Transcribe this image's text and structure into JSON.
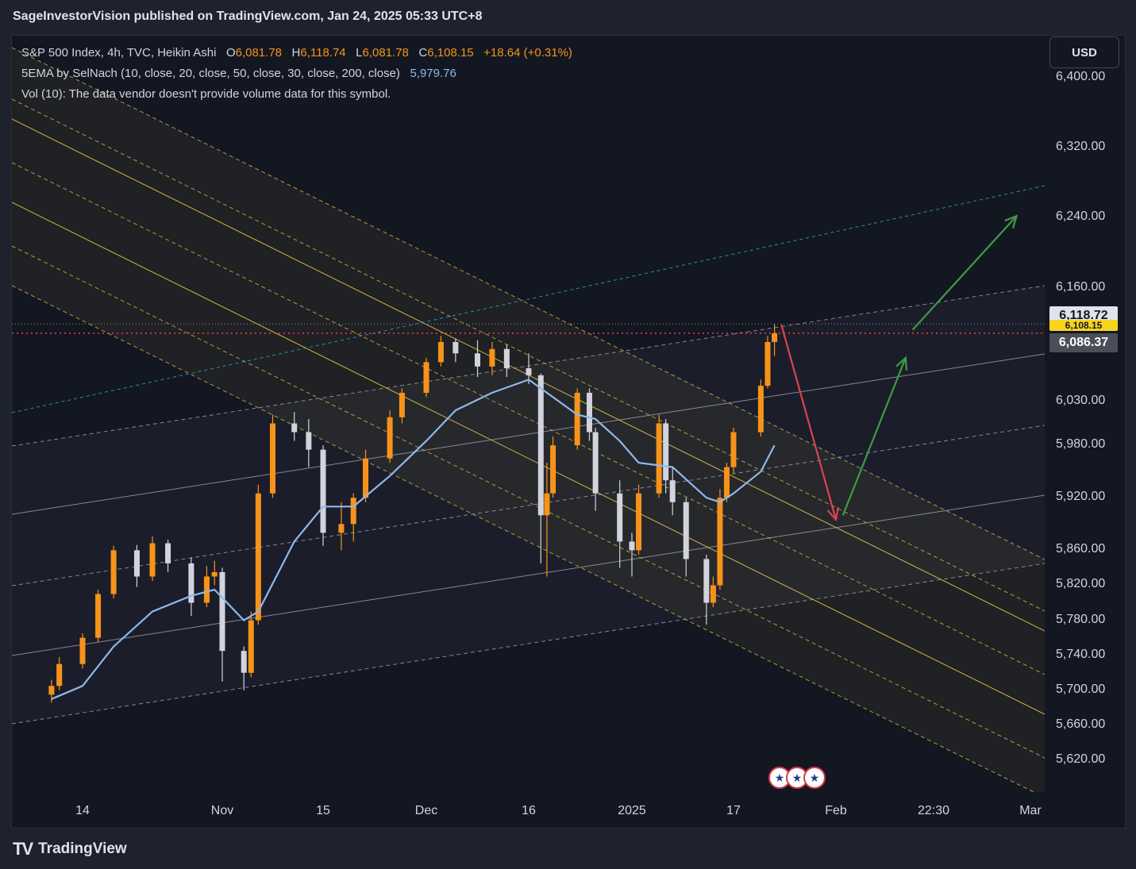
{
  "header": {
    "title": "SageInvestorVision published on TradingView.com, Jan 24, 2025 05:33 UTC+8"
  },
  "legend": {
    "symbol": "S&P 500 Index, 4h, TVC, Heikin Ashi",
    "o_label": "O",
    "o_value": "6,081.78",
    "h_label": "H",
    "h_value": "6,118.74",
    "l_label": "L",
    "l_value": "6,081.78",
    "c_label": "C",
    "c_value": "6,108.15",
    "change": "+18.64 (+0.31%)",
    "ema_label": "5EMA by SelNach (10, close, 20, close, 50, close, 30, close, 200, close)",
    "ema_value": "5,979.76",
    "vol_text": "Vol (10): The data vendor doesn't provide volume data for this symbol."
  },
  "currency_button": "USD",
  "price_labels": {
    "high": "6,118.72",
    "current": "6,108.15",
    "lower": "6,086.37"
  },
  "footer": {
    "logo_icon": "tradingview-logo-icon",
    "brand": "TradingView"
  },
  "event_icons": [
    "us-flag-icon",
    "us-flag-icon",
    "us-flag-icon"
  ],
  "colors": {
    "up": "#f7931a",
    "down": "#d1d4dc",
    "ema": "#8fb8ec",
    "channel_yellow": "#f5d142",
    "channel_white": "#b2b5be",
    "channel_teal": "#26a6c9",
    "arrow_red": "#d9434f",
    "arrow_green": "#3e9b47",
    "dotted_red": "#f23645"
  },
  "chart_data": {
    "type": "candlestick",
    "style": "Heikin Ashi",
    "symbol": "S&P 500 Index",
    "interval": "4h",
    "y_ticks": [
      6400,
      6320,
      6240,
      6160,
      6030,
      5980,
      5920,
      5860,
      5820,
      5780,
      5740,
      5700,
      5660,
      5620
    ],
    "y_tick_labels": [
      "6,400.00",
      "6,320.00",
      "6,240.00",
      "6,160.00",
      "6,030.00",
      "5,980.00",
      "5,920.00",
      "5,860.00",
      "5,820.00",
      "5,780.00",
      "5,740.00",
      "5,700.00",
      "5,660.00",
      "5,620.00"
    ],
    "x_tick_labels": [
      "14",
      "Nov",
      "15",
      "Dec",
      "16",
      "2025",
      "17",
      "Feb",
      "22:30",
      "Mar"
    ],
    "x_tick_dates": [
      "2024-10-14",
      "2024-11-01",
      "2024-11-15",
      "2024-12-02",
      "2024-12-16",
      "2025-01-02",
      "2025-01-17",
      "2025-02-01",
      "2025-02-15",
      "2025-03-01"
    ],
    "ylim": [
      5585,
      6440
    ],
    "grid": false,
    "candles": [
      {
        "date": "2024-10-10",
        "o": 5695,
        "h": 5712,
        "l": 5686,
        "c": 5705
      },
      {
        "date": "2024-10-11",
        "o": 5705,
        "h": 5738,
        "l": 5700,
        "c": 5730
      },
      {
        "date": "2024-10-14",
        "o": 5730,
        "h": 5765,
        "l": 5725,
        "c": 5760
      },
      {
        "date": "2024-10-16",
        "o": 5760,
        "h": 5815,
        "l": 5755,
        "c": 5810
      },
      {
        "date": "2024-10-18",
        "o": 5810,
        "h": 5865,
        "l": 5805,
        "c": 5860
      },
      {
        "date": "2024-10-21",
        "o": 5860,
        "h": 5866,
        "l": 5818,
        "c": 5830
      },
      {
        "date": "2024-10-23",
        "o": 5830,
        "h": 5876,
        "l": 5825,
        "c": 5868
      },
      {
        "date": "2024-10-25",
        "o": 5868,
        "h": 5872,
        "l": 5835,
        "c": 5845
      },
      {
        "date": "2024-10-28",
        "o": 5845,
        "h": 5852,
        "l": 5785,
        "c": 5800
      },
      {
        "date": "2024-10-30",
        "o": 5800,
        "h": 5842,
        "l": 5795,
        "c": 5830
      },
      {
        "date": "2024-10-31",
        "o": 5830,
        "h": 5848,
        "l": 5820,
        "c": 5835
      },
      {
        "date": "2024-11-01",
        "o": 5835,
        "h": 5840,
        "l": 5710,
        "c": 5745
      },
      {
        "date": "2024-11-04",
        "o": 5745,
        "h": 5750,
        "l": 5700,
        "c": 5720
      },
      {
        "date": "2024-11-05",
        "o": 5720,
        "h": 5790,
        "l": 5715,
        "c": 5780
      },
      {
        "date": "2024-11-06",
        "o": 5780,
        "h": 5935,
        "l": 5775,
        "c": 5925
      },
      {
        "date": "2024-11-08",
        "o": 5925,
        "h": 6015,
        "l": 5920,
        "c": 6005
      },
      {
        "date": "2024-11-11",
        "o": 6005,
        "h": 6018,
        "l": 5985,
        "c": 5995
      },
      {
        "date": "2024-11-13",
        "o": 5995,
        "h": 6010,
        "l": 5955,
        "c": 5975
      },
      {
        "date": "2024-11-15",
        "o": 5975,
        "h": 5980,
        "l": 5865,
        "c": 5880
      },
      {
        "date": "2024-11-18",
        "o": 5880,
        "h": 5915,
        "l": 5860,
        "c": 5890
      },
      {
        "date": "2024-11-20",
        "o": 5890,
        "h": 5925,
        "l": 5870,
        "c": 5920
      },
      {
        "date": "2024-11-22",
        "o": 5920,
        "h": 5975,
        "l": 5915,
        "c": 5965
      },
      {
        "date": "2024-11-26",
        "o": 5965,
        "h": 6020,
        "l": 5960,
        "c": 6012
      },
      {
        "date": "2024-11-28",
        "o": 6012,
        "h": 6045,
        "l": 6005,
        "c": 6040
      },
      {
        "date": "2024-12-02",
        "o": 6040,
        "h": 6080,
        "l": 6035,
        "c": 6075
      },
      {
        "date": "2024-12-04",
        "o": 6075,
        "h": 6105,
        "l": 6070,
        "c": 6098
      },
      {
        "date": "2024-12-06",
        "o": 6098,
        "h": 6102,
        "l": 6075,
        "c": 6085
      },
      {
        "date": "2024-12-09",
        "o": 6085,
        "h": 6100,
        "l": 6058,
        "c": 6070
      },
      {
        "date": "2024-12-11",
        "o": 6070,
        "h": 6098,
        "l": 6060,
        "c": 6090
      },
      {
        "date": "2024-12-13",
        "o": 6090,
        "h": 6095,
        "l": 6058,
        "c": 6068
      },
      {
        "date": "2024-12-16",
        "o": 6068,
        "h": 6085,
        "l": 6050,
        "c": 6060
      },
      {
        "date": "2024-12-18",
        "o": 6060,
        "h": 6062,
        "l": 5845,
        "c": 5900
      },
      {
        "date": "2024-12-19",
        "o": 5900,
        "h": 5960,
        "l": 5830,
        "c": 5925
      },
      {
        "date": "2024-12-20",
        "o": 5925,
        "h": 5990,
        "l": 5920,
        "c": 5980
      },
      {
        "date": "2024-12-24",
        "o": 5980,
        "h": 6045,
        "l": 5975,
        "c": 6040
      },
      {
        "date": "2024-12-26",
        "o": 6040,
        "h": 6045,
        "l": 5985,
        "c": 5995
      },
      {
        "date": "2024-12-27",
        "o": 5995,
        "h": 6000,
        "l": 5905,
        "c": 5925
      },
      {
        "date": "2024-12-31",
        "o": 5925,
        "h": 5940,
        "l": 5840,
        "c": 5870
      },
      {
        "date": "2025-01-02",
        "o": 5870,
        "h": 5880,
        "l": 5830,
        "c": 5860
      },
      {
        "date": "2025-01-03",
        "o": 5860,
        "h": 5935,
        "l": 5855,
        "c": 5925
      },
      {
        "date": "2025-01-06",
        "o": 5925,
        "h": 6015,
        "l": 5920,
        "c": 6005
      },
      {
        "date": "2025-01-07",
        "o": 6005,
        "h": 6010,
        "l": 5925,
        "c": 5940
      },
      {
        "date": "2025-01-08",
        "o": 5940,
        "h": 5955,
        "l": 5900,
        "c": 5915
      },
      {
        "date": "2025-01-10",
        "o": 5915,
        "h": 5920,
        "l": 5830,
        "c": 5850
      },
      {
        "date": "2025-01-13",
        "o": 5850,
        "h": 5855,
        "l": 5775,
        "c": 5800
      },
      {
        "date": "2025-01-14",
        "o": 5800,
        "h": 5830,
        "l": 5795,
        "c": 5820
      },
      {
        "date": "2025-01-15",
        "o": 5820,
        "h": 5930,
        "l": 5815,
        "c": 5920
      },
      {
        "date": "2025-01-16",
        "o": 5920,
        "h": 5960,
        "l": 5915,
        "c": 5955
      },
      {
        "date": "2025-01-17",
        "o": 5955,
        "h": 6000,
        "l": 5948,
        "c": 5995
      },
      {
        "date": "2025-01-21",
        "o": 5995,
        "h": 6055,
        "l": 5990,
        "c": 6048
      },
      {
        "date": "2025-01-22",
        "o": 6048,
        "h": 6105,
        "l": 6045,
        "c": 6098
      },
      {
        "date": "2025-01-23",
        "o": 6098,
        "h": 6119,
        "l": 6082,
        "c": 6108
      }
    ],
    "ema_series": {
      "name": "5EMA by SelNach",
      "last_value": 5979.76,
      "points": [
        {
          "date": "2024-10-10",
          "y": 5690
        },
        {
          "date": "2024-10-14",
          "y": 5705
        },
        {
          "date": "2024-10-18",
          "y": 5750
        },
        {
          "date": "2024-10-23",
          "y": 5790
        },
        {
          "date": "2024-10-28",
          "y": 5808
        },
        {
          "date": "2024-10-31",
          "y": 5815
        },
        {
          "date": "2024-11-04",
          "y": 5780
        },
        {
          "date": "2024-11-06",
          "y": 5790
        },
        {
          "date": "2024-11-11",
          "y": 5870
        },
        {
          "date": "2024-11-15",
          "y": 5910
        },
        {
          "date": "2024-11-20",
          "y": 5910
        },
        {
          "date": "2024-11-26",
          "y": 5945
        },
        {
          "date": "2024-12-02",
          "y": 5985
        },
        {
          "date": "2024-12-06",
          "y": 6020
        },
        {
          "date": "2024-12-11",
          "y": 6040
        },
        {
          "date": "2024-12-16",
          "y": 6055
        },
        {
          "date": "2024-12-19",
          "y": 6040
        },
        {
          "date": "2024-12-24",
          "y": 6015
        },
        {
          "date": "2024-12-27",
          "y": 6010
        },
        {
          "date": "2024-12-31",
          "y": 5985
        },
        {
          "date": "2025-01-03",
          "y": 5960
        },
        {
          "date": "2025-01-08",
          "y": 5955
        },
        {
          "date": "2025-01-13",
          "y": 5920
        },
        {
          "date": "2025-01-15",
          "y": 5915
        },
        {
          "date": "2025-01-17",
          "y": 5925
        },
        {
          "date": "2025-01-21",
          "y": 5950
        },
        {
          "date": "2025-01-23",
          "y": 5980
        }
      ]
    },
    "horizontal_levels": [
      6108.15,
      6118.72
    ],
    "projection_arrows": [
      {
        "color": "red",
        "from": {
          "date": "2025-01-24",
          "y": 6118
        },
        "to": {
          "date": "2025-02-01",
          "y": 5895
        }
      },
      {
        "color": "green",
        "from": {
          "date": "2025-02-02",
          "y": 5900
        },
        "to": {
          "date": "2025-02-11",
          "y": 6080
        }
      },
      {
        "color": "green",
        "from": {
          "date": "2025-02-12",
          "y": 6112
        },
        "to": {
          "date": "2025-02-27",
          "y": 6242
        }
      }
    ]
  }
}
